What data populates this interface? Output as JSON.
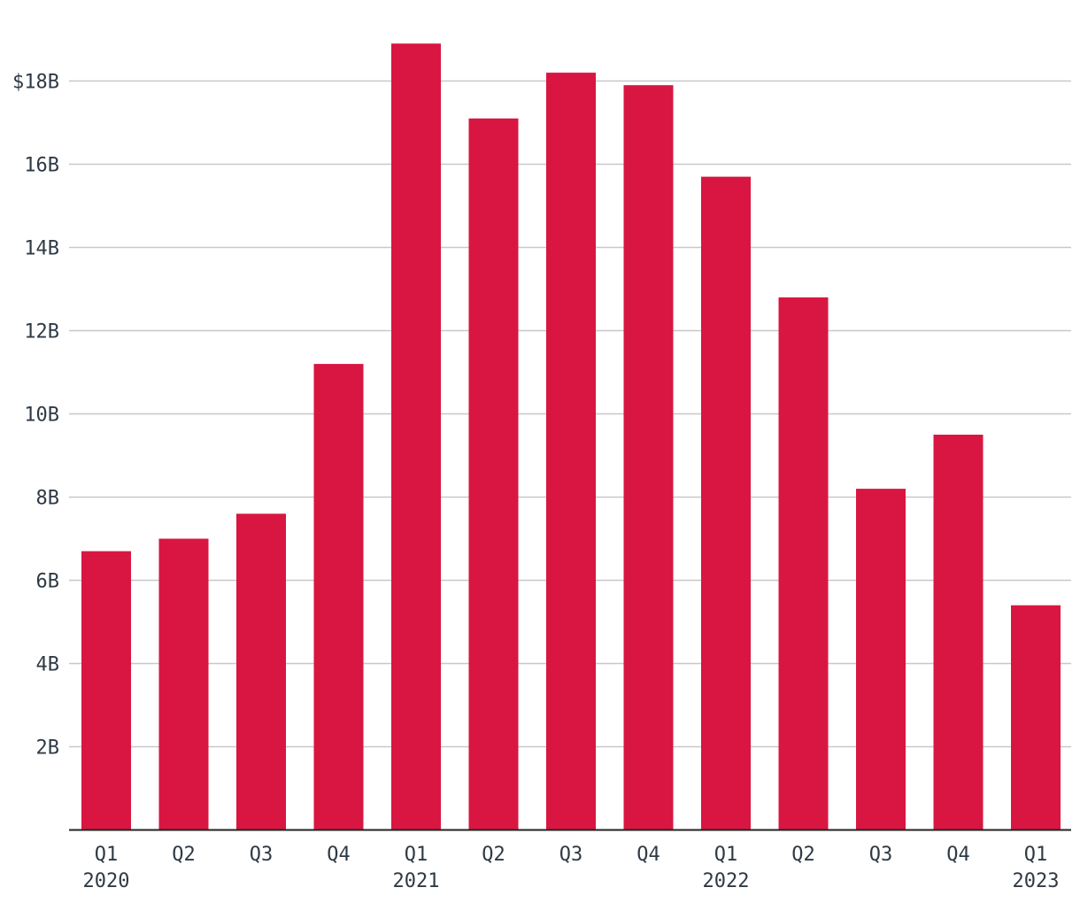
{
  "chart_data": {
    "type": "bar",
    "categories": [
      "Q1",
      "Q2",
      "Q3",
      "Q4",
      "Q1",
      "Q2",
      "Q3",
      "Q4",
      "Q1",
      "Q2",
      "Q3",
      "Q4",
      "Q1"
    ],
    "year_labels": [
      "2020",
      "",
      "",
      "",
      "2021",
      "",
      "",
      "",
      "2022",
      "",
      "",
      "",
      "2023"
    ],
    "values": [
      6.7,
      7.0,
      7.6,
      11.2,
      18.9,
      17.1,
      18.2,
      17.9,
      15.7,
      12.8,
      8.2,
      9.5,
      5.4
    ],
    "ylim": [
      0,
      19.5
    ],
    "yticks": [
      2,
      4,
      6,
      8,
      10,
      12,
      14,
      16,
      18
    ],
    "ytick_labels": [
      "2B",
      "4B",
      "6B",
      "8B",
      "10B",
      "12B",
      "14B",
      "16B",
      "$18B"
    ],
    "title": "",
    "xlabel": "",
    "ylabel": "",
    "grid": true,
    "legend": "none",
    "colors": {
      "bar": "#d81641",
      "grid": "#c8c8c8",
      "text": "#2f3a45",
      "axis": "#222222"
    }
  }
}
